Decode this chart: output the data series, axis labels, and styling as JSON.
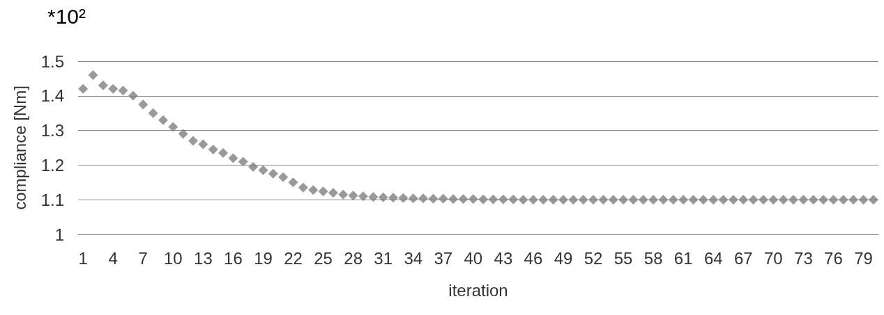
{
  "chart_data": {
    "type": "scatter",
    "xlabel": "iteration",
    "ylabel": "compliance [Nm]",
    "annotations": [
      "*10²"
    ],
    "categories": [
      "1",
      null,
      null,
      "4",
      null,
      null,
      "7",
      null,
      null,
      "10",
      null,
      null,
      "13",
      null,
      null,
      "16",
      null,
      null,
      "19",
      null,
      null,
      "22",
      null,
      null,
      "25",
      null,
      null,
      "28",
      null,
      null,
      "31",
      null,
      null,
      "34",
      null,
      null,
      "37",
      null,
      null,
      "40",
      null,
      null,
      "43",
      null,
      null,
      "46",
      null,
      null,
      "49",
      null,
      null,
      "52",
      null,
      null,
      "55",
      null,
      null,
      "58",
      null,
      null,
      "61",
      null,
      null,
      "64",
      null,
      null,
      "67",
      null,
      null,
      "70",
      null,
      null,
      "73",
      null,
      null,
      "76",
      null,
      null,
      "79",
      null
    ],
    "series": [
      {
        "color": "#7f7f7f",
        "values": [
          1.42,
          1.46,
          1.43,
          1.42,
          1.415,
          1.4,
          1.375,
          1.35,
          1.33,
          1.31,
          1.29,
          1.27,
          1.26,
          1.245,
          1.235,
          1.22,
          1.21,
          1.195,
          1.185,
          1.175,
          1.165,
          1.15,
          1.135,
          1.128,
          1.124,
          1.12,
          1.115,
          1.112,
          1.11,
          1.108,
          1.107,
          1.106,
          1.105,
          1.104,
          1.104,
          1.103,
          1.103,
          1.102,
          1.102,
          1.102,
          1.101,
          1.101,
          1.101,
          1.101,
          1.1,
          1.1,
          1.1,
          1.1,
          1.1,
          1.1,
          1.1,
          1.1,
          1.1,
          1.1,
          1.1,
          1.1,
          1.1,
          1.1,
          1.1,
          1.1,
          1.1,
          1.1,
          1.1,
          1.1,
          1.1,
          1.1,
          1.1,
          1.1,
          1.1,
          1.1,
          1.1,
          1.1,
          1.1,
          1.1,
          1.1,
          1.1,
          1.1,
          1.1,
          1.1,
          1.1
        ]
      }
    ],
    "ylim": [
      1,
      1.5
    ],
    "yticks": [
      1,
      1.1,
      1.2,
      1.3,
      1.4,
      1.5
    ],
    "grid": "y",
    "marker": "diamond"
  }
}
